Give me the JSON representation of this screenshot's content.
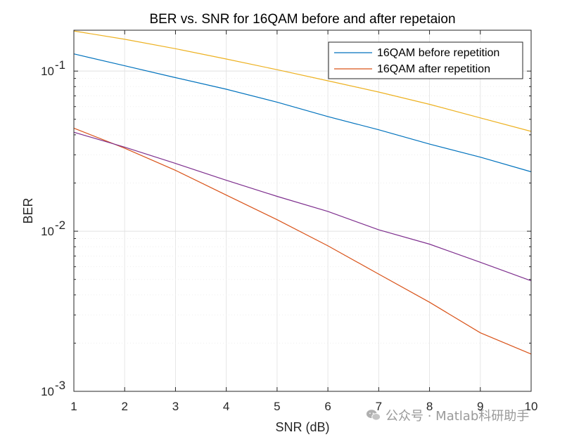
{
  "chart_data": {
    "type": "line",
    "title": "BER vs. SNR for 16QAM before and after repetaion",
    "xlabel": "SNR (dB)",
    "ylabel": "BER",
    "xlim": [
      1,
      10
    ],
    "ylim": [
      0.001,
      0.18
    ],
    "yscale": "log",
    "grid": true,
    "legend_position": "top-right",
    "x": [
      1,
      2,
      3,
      4,
      5,
      6,
      7,
      8,
      9,
      10
    ],
    "x_tick_labels": [
      "1",
      "2",
      "3",
      "4",
      "5",
      "6",
      "7",
      "8",
      "9",
      "10"
    ],
    "y_tick_labels": [
      {
        "value": 0.1,
        "base": "10",
        "exp": "-1"
      },
      {
        "value": 0.01,
        "base": "10",
        "exp": "-2"
      },
      {
        "value": 0.001,
        "base": "10",
        "exp": "-3"
      }
    ],
    "series": [
      {
        "name": "16QAM before repetition",
        "color": "#0072BD",
        "in_legend": true,
        "values": [
          0.128,
          0.108,
          0.091,
          0.077,
          0.064,
          0.052,
          0.043,
          0.035,
          0.029,
          0.0235
        ]
      },
      {
        "name": "16QAM after repetition",
        "color": "#D95319",
        "in_legend": true,
        "values": [
          0.044,
          0.033,
          0.024,
          0.0168,
          0.0118,
          0.0081,
          0.0054,
          0.0036,
          0.00232,
          0.00171
        ]
      },
      {
        "name": "",
        "color": "#EDB120",
        "in_legend": false,
        "values": [
          0.178,
          0.158,
          0.138,
          0.119,
          0.102,
          0.087,
          0.074,
          0.062,
          0.051,
          0.042
        ]
      },
      {
        "name": "",
        "color": "#7E2F8E",
        "in_legend": false,
        "values": [
          0.0415,
          0.0335,
          0.0265,
          0.0208,
          0.0165,
          0.0133,
          0.0102,
          0.0083,
          0.0064,
          0.0049
        ]
      }
    ]
  },
  "watermark": {
    "text": "公众号 · Matlab科研助手",
    "icon": "wechat-icon"
  }
}
